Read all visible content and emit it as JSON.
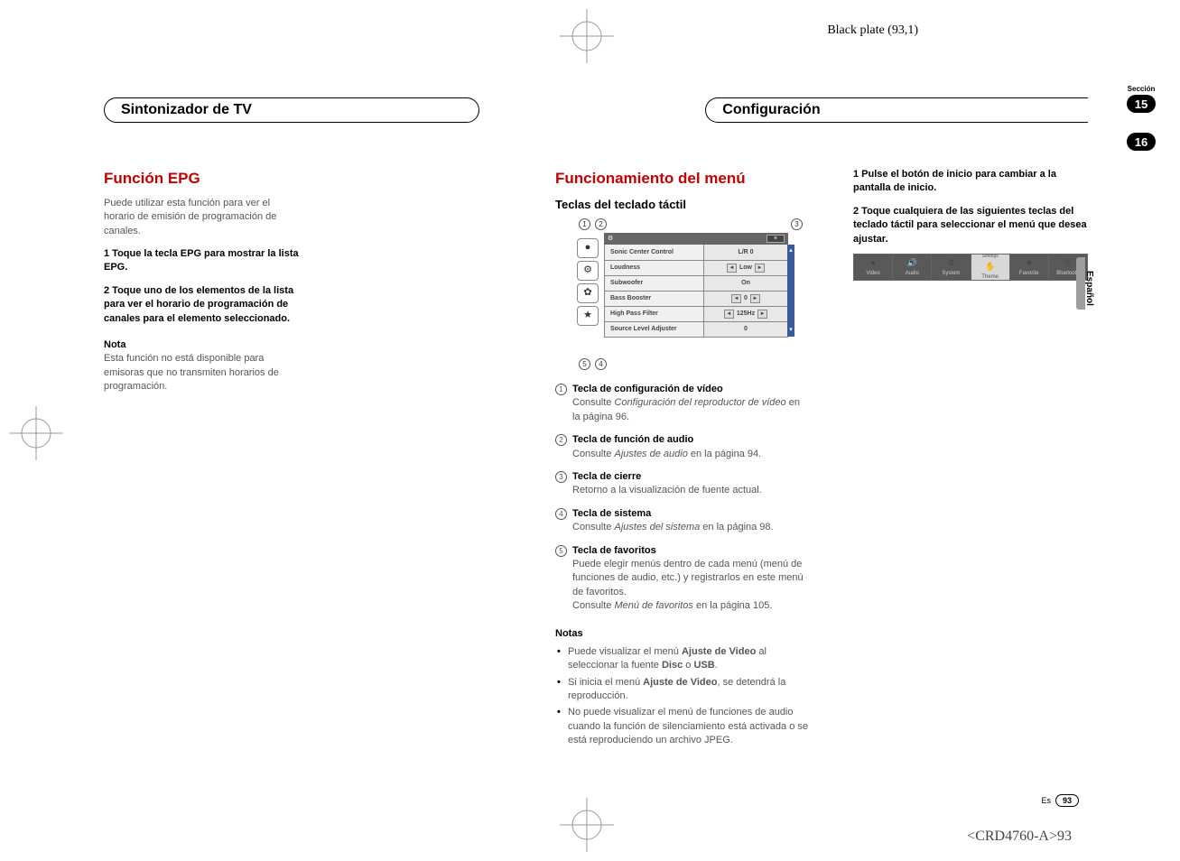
{
  "meta": {
    "black_plate": "Black plate (93,1)",
    "footer_code": "<CRD4760-A>93",
    "lang_code": "Es",
    "page_number": "93",
    "side_language": "Español"
  },
  "sections": {
    "label": "Sección",
    "n1": "15",
    "n2": "16"
  },
  "pill1": "Sintonizador de TV",
  "pill2": "Configuración",
  "left": {
    "title": "Función EPG",
    "intro": "Puede utilizar esta función para ver el horario de emisión de programación de canales.",
    "step1": "1   Toque la tecla EPG para mostrar la lista EPG.",
    "step2": "2   Toque uno de los elementos de la lista para ver el horario de programación de canales para el elemento seleccionado.",
    "note_title": "Nota",
    "note_body": "Esta función no está disponible para emisoras que no transmiten horarios de programación."
  },
  "mid": {
    "title": "Funcionamiento del menú",
    "subtitle": "Teclas del teclado táctil",
    "panel": {
      "close": "×",
      "gear": "⚙",
      "rows": [
        {
          "label": "Sonic Center Control",
          "val": "L/R  0",
          "arrows": false
        },
        {
          "label": "Loudness",
          "val": "Low",
          "arrows": true
        },
        {
          "label": "Subwoofer",
          "val": "On",
          "arrows": false
        },
        {
          "label": "Bass Booster",
          "val": "0",
          "arrows": true
        },
        {
          "label": "High Pass Filter",
          "val": "125Hz",
          "arrows": true
        },
        {
          "label": "Source Level Adjuster",
          "val": "0",
          "arrows": false
        }
      ]
    },
    "keys": [
      {
        "n": "1",
        "t": "Tecla de configuración de vídeo",
        "d1": "Consulte ",
        "di": "Configuración del reproductor de vídeo",
        "d2": " en la página 96."
      },
      {
        "n": "2",
        "t": "Tecla de función de audio",
        "d1": "Consulte ",
        "di": "Ajustes de audio",
        "d2": " en la página 94."
      },
      {
        "n": "3",
        "t": "Tecla de cierre",
        "d1": "Retorno a la visualización de fuente actual.",
        "di": "",
        "d2": ""
      },
      {
        "n": "4",
        "t": "Tecla de sistema",
        "d1": "Consulte ",
        "di": "Ajustes del sistema",
        "d2": " en la página 98."
      },
      {
        "n": "5",
        "t": "Tecla de favoritos",
        "d1": "Puede elegir menús dentro de cada menú (menú de funciones de audio, etc.) y registrarlos en este menú de favoritos.\nConsulte ",
        "di": "Menú de favoritos",
        "d2": " en la página 105."
      }
    ],
    "notes_title": "Notas",
    "notes": [
      {
        "pre": "Puede visualizar el menú ",
        "b1": "Ajuste de Video",
        "mid": " al seleccionar la fuente ",
        "b2": "Disc",
        "mid2": " o ",
        "b3": "USB",
        "post": "."
      },
      {
        "pre": "Si inicia el menú ",
        "b1": "Ajuste de Video",
        "mid": ", se detendrá la reproducción.",
        "b2": "",
        "mid2": "",
        "b3": "",
        "post": ""
      },
      {
        "pre": "No puede visualizar el menú de funciones de audio cuando la función de silenciamiento está activada o se está reproduciendo un archivo JPEG.",
        "b1": "",
        "mid": "",
        "b2": "",
        "mid2": "",
        "b3": "",
        "post": ""
      }
    ]
  },
  "right": {
    "step1": "1   Pulse el botón de inicio para cambiar a la pantalla de inicio.",
    "step2": "2   Toque cualquiera de las siguientes teclas del teclado táctil para seleccionar el menú que desea ajustar.",
    "menu": [
      {
        "icon": "●",
        "label": "Video"
      },
      {
        "icon": "🔊",
        "label": "Audio"
      },
      {
        "icon": "⚙",
        "label": "System"
      },
      {
        "icon": "✋",
        "label": "Theme",
        "pre": "Settings",
        "light": true
      },
      {
        "icon": "★",
        "label": "Favorite"
      },
      {
        "icon": "ⓑ",
        "label": "Bluetooth"
      }
    ]
  }
}
